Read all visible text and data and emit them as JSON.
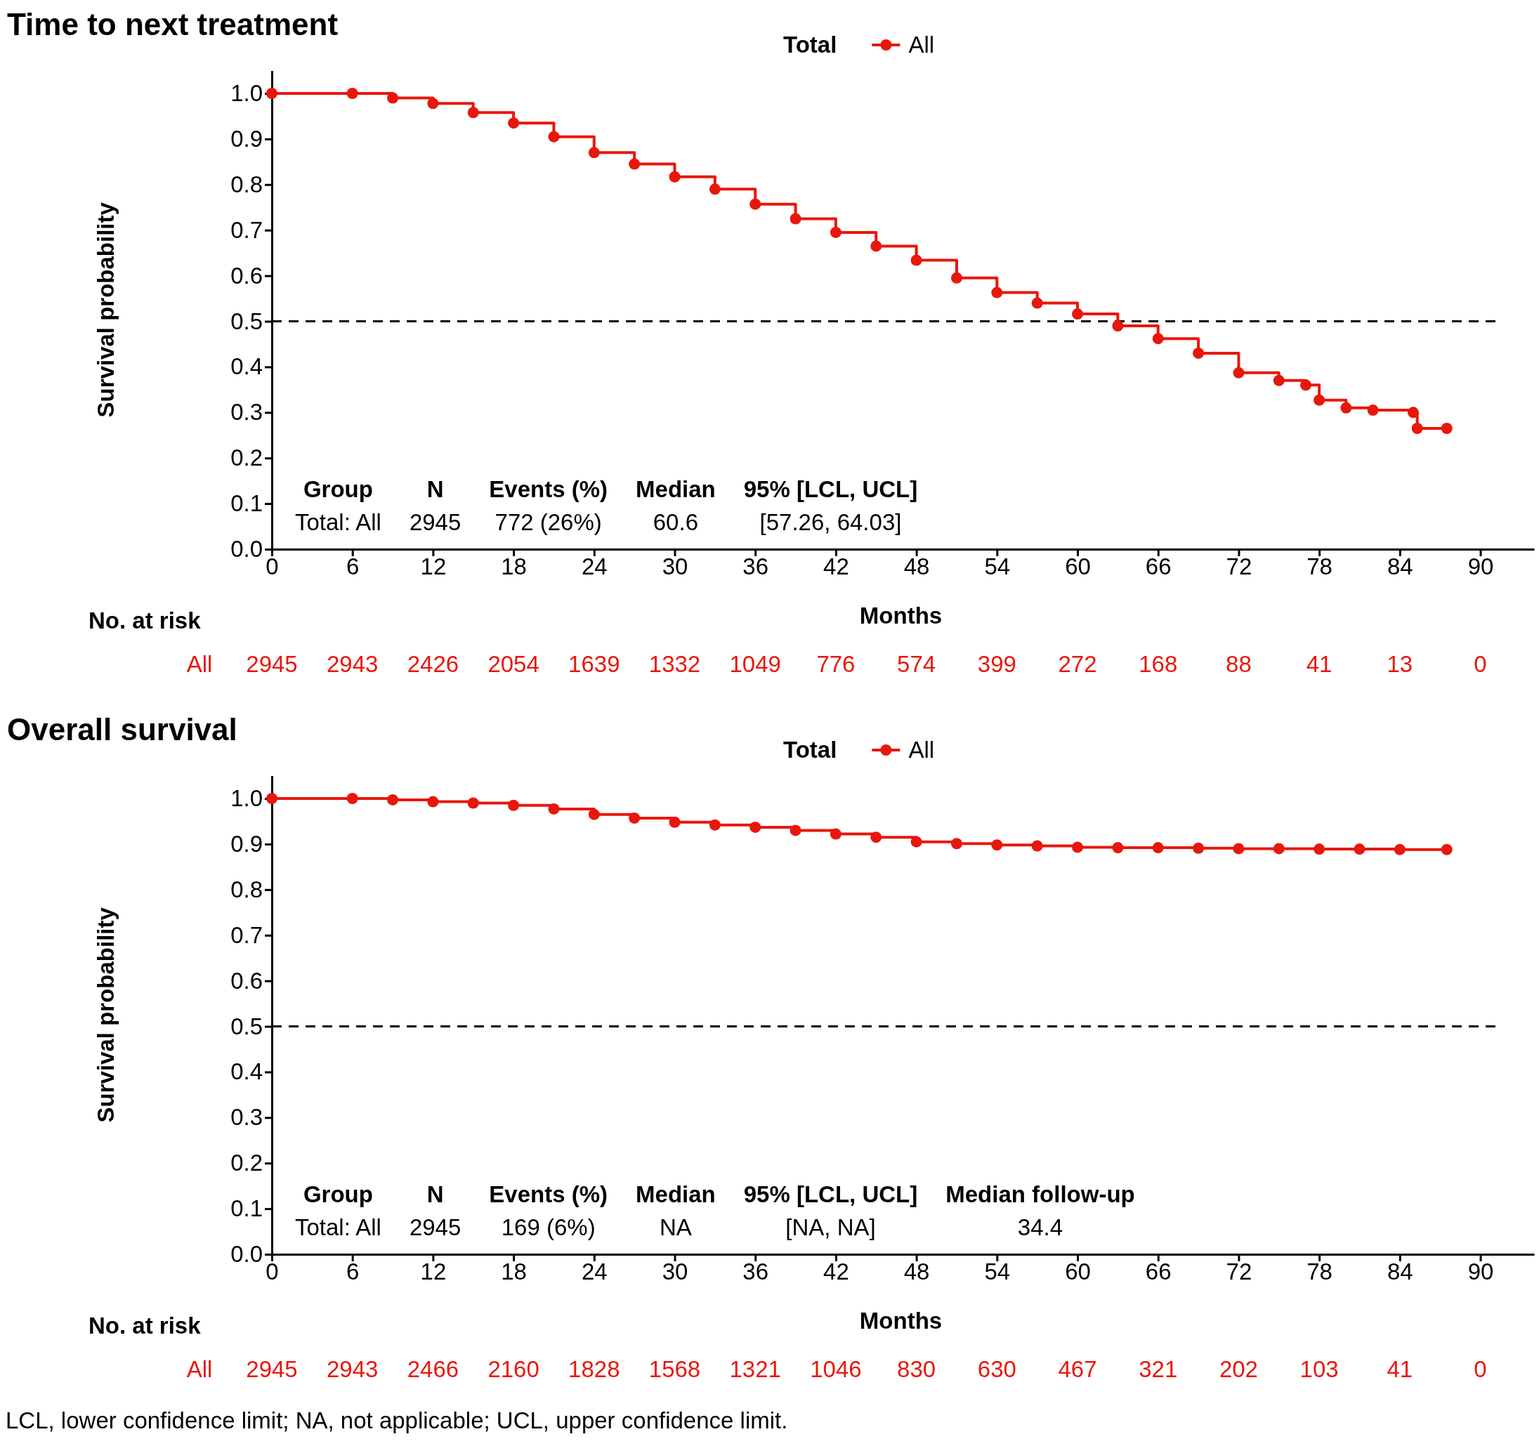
{
  "chart_data": [
    {
      "type": "step",
      "title": "Time to next treatment",
      "xlabel": "Months",
      "ylabel": "Survival probability",
      "legend_title": "Total",
      "legend": "top",
      "marker": "circle",
      "grid": false,
      "xlim": [
        0,
        94
      ],
      "xticks": [
        0,
        6,
        12,
        18,
        24,
        30,
        36,
        42,
        48,
        54,
        60,
        66,
        72,
        78,
        84,
        90
      ],
      "ylim": [
        0,
        1.05
      ],
      "yticks": [
        {
          "value": 0,
          "label": "0.0"
        },
        {
          "value": 0.1,
          "label": "0.1"
        },
        {
          "value": 0.2,
          "label": "0.2"
        },
        {
          "value": 0.3,
          "label": "0.3"
        },
        {
          "value": 0.4,
          "label": "0.4"
        },
        {
          "value": 0.5,
          "label": "0.5"
        },
        {
          "value": 0.6,
          "label": "0.6"
        },
        {
          "value": 0.7,
          "label": "0.7"
        },
        {
          "value": 0.8,
          "label": "0.8"
        },
        {
          "value": 0.9,
          "label": "0.9"
        },
        {
          "value": 1,
          "label": "1.0"
        }
      ],
      "ref_lines": [
        {
          "axis": "y",
          "value": 0.5,
          "line_style": "dashed",
          "color": "#000000"
        }
      ],
      "series": [
        {
          "name": "All",
          "color": "#e8170c",
          "x": [
            0,
            6,
            9,
            12,
            15,
            18,
            21,
            24,
            27,
            30,
            33,
            36,
            39,
            42,
            45,
            48,
            51,
            54,
            57,
            60,
            63,
            66,
            69,
            72,
            75,
            77,
            78,
            80,
            82,
            85,
            85.3,
            87.5
          ],
          "values": [
            1,
            1,
            0.99,
            0.978,
            0.958,
            0.935,
            0.905,
            0.87,
            0.845,
            0.817,
            0.79,
            0.757,
            0.725,
            0.695,
            0.665,
            0.634,
            0.595,
            0.563,
            0.54,
            0.516,
            0.49,
            0.462,
            0.43,
            0.387,
            0.37,
            0.36,
            0.327,
            0.31,
            0.305,
            0.3,
            0.265,
            0.265
          ]
        }
      ],
      "annotations": [
        "No. at risk",
        "All",
        "2945",
        "2943",
        "2426",
        "2054",
        "1639",
        "1332",
        "1049",
        "776",
        "574",
        "399",
        "272",
        "168",
        "88",
        "41",
        "13",
        "0",
        "Group",
        "N",
        "Events (%)",
        "Median",
        "95% [LCL, UCL]",
        "Total: All",
        "2945",
        "772 (26%)",
        "60.6",
        "[57.26, 64.03]"
      ]
    },
    {
      "type": "step",
      "title": "Overall survival",
      "xlabel": "Months",
      "ylabel": "Survival probability",
      "legend_title": "Total",
      "legend": "top",
      "marker": "circle",
      "grid": false,
      "xlim": [
        0,
        94
      ],
      "xticks": [
        0,
        6,
        12,
        18,
        24,
        30,
        36,
        42,
        48,
        54,
        60,
        66,
        72,
        78,
        84,
        90
      ],
      "ylim": [
        0,
        1.05
      ],
      "yticks": [
        {
          "value": 0,
          "label": "0.0"
        },
        {
          "value": 0.1,
          "label": "0.1"
        },
        {
          "value": 0.2,
          "label": "0.2"
        },
        {
          "value": 0.3,
          "label": "0.3"
        },
        {
          "value": 0.4,
          "label": "0.4"
        },
        {
          "value": 0.5,
          "label": "0.5"
        },
        {
          "value": 0.6,
          "label": "0.6"
        },
        {
          "value": 0.7,
          "label": "0.7"
        },
        {
          "value": 0.8,
          "label": "0.8"
        },
        {
          "value": 0.9,
          "label": "0.9"
        },
        {
          "value": 1,
          "label": "1.0"
        }
      ],
      "ref_lines": [
        {
          "axis": "y",
          "value": 0.5,
          "line_style": "dashed",
          "color": "#000000"
        }
      ],
      "series": [
        {
          "name": "All",
          "color": "#e8170c",
          "x": [
            0,
            6,
            9,
            12,
            15,
            18,
            21,
            24,
            27,
            30,
            33,
            36,
            39,
            42,
            45,
            48,
            51,
            54,
            57,
            60,
            63,
            66,
            69,
            72,
            75,
            78,
            81,
            84,
            87.5
          ],
          "values": [
            1,
            1,
            0.997,
            0.993,
            0.99,
            0.985,
            0.977,
            0.965,
            0.957,
            0.948,
            0.942,
            0.937,
            0.93,
            0.922,
            0.915,
            0.905,
            0.901,
            0.898,
            0.896,
            0.893,
            0.892,
            0.892,
            0.891,
            0.89,
            0.89,
            0.889,
            0.889,
            0.888,
            0.888
          ]
        }
      ],
      "annotations": [
        "No. at risk",
        "All",
        "2945",
        "2943",
        "2466",
        "2160",
        "1828",
        "1568",
        "1321",
        "1046",
        "830",
        "630",
        "467",
        "321",
        "202",
        "103",
        "41",
        "0",
        "Group",
        "N",
        "Events (%)",
        "Median",
        "95% [LCL, UCL]",
        "Median follow-up",
        "Total: All",
        "2945",
        "169 (6%)",
        "NA",
        "[NA, NA]",
        "34.4",
        "LCL, lower confidence limit; NA, not applicable; UCL, upper confidence limit."
      ]
    }
  ]
}
